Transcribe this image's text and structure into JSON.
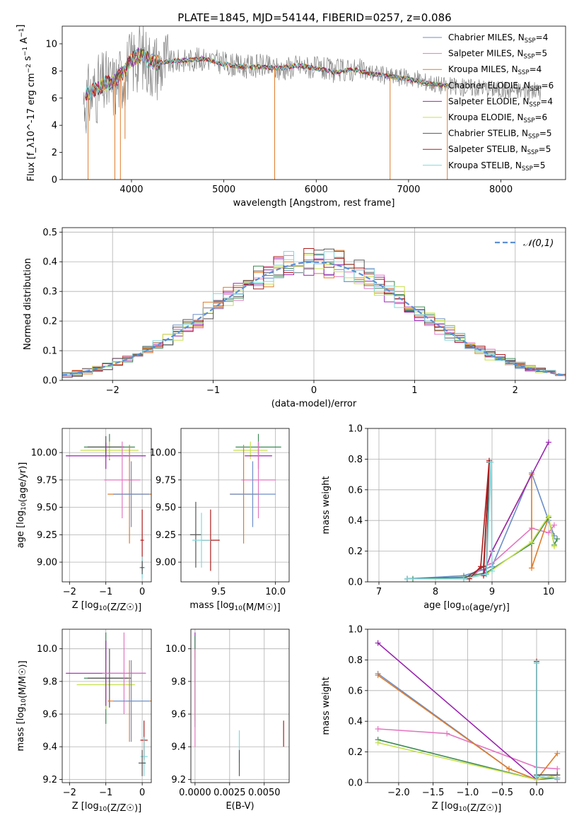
{
  "figure": {
    "title": "PLATE=1845, MJD=54144, FIBERID=0257, z=0.086"
  },
  "models": [
    {
      "name": "Chabrier MILES",
      "nssp": 4,
      "color": "#6c8ec8"
    },
    {
      "name": "Salpeter MILES",
      "nssp": 5,
      "color": "#e377c2"
    },
    {
      "name": "Kroupa MILES",
      "nssp": 4,
      "color": "#e07b2a"
    },
    {
      "name": "Chabrier ELODIE",
      "nssp": 6,
      "color": "#3d8a55"
    },
    {
      "name": "Salpeter ELODIE",
      "nssp": 4,
      "color": "#9a27b0"
    },
    {
      "name": "Kroupa ELODIE",
      "nssp": 6,
      "color": "#c6e04d"
    },
    {
      "name": "Chabrier STELIB",
      "nssp": 5,
      "color": "#555555"
    },
    {
      "name": "Salpeter STELIB",
      "nssp": 5,
      "color": "#b01b1b"
    },
    {
      "name": "Kroupa STELIB",
      "nssp": 5,
      "color": "#7fd8dc"
    }
  ],
  "chart_data": [
    {
      "id": "spectrum",
      "type": "line",
      "xlabel": "wavelength [Angstrom, rest frame]",
      "ylabel": "Flux [f_λ10^-17 erg cm^-2 s^-1 A^-1]",
      "xlim": [
        3250,
        8700
      ],
      "ylim": [
        0,
        11.3
      ],
      "xticks": [
        4000,
        5000,
        6000,
        7000,
        8000
      ],
      "yticks": [
        0,
        2,
        4,
        6,
        8,
        10
      ],
      "grid": false,
      "legend_position": "right",
      "observed": {
        "x": [
          3500,
          3600,
          3700,
          3800,
          3900,
          4000,
          4100,
          4200,
          4300,
          4400,
          4600,
          4800,
          5000,
          5200,
          5400,
          5600,
          5800,
          6000,
          6200,
          6400,
          6600,
          6800,
          7000,
          7200,
          7400,
          7600,
          7800,
          8000,
          8200,
          8400
        ],
        "y": [
          5.8,
          6.5,
          7.0,
          6.9,
          7.6,
          8.6,
          9.2,
          8.6,
          8.4,
          8.6,
          8.8,
          8.9,
          8.6,
          8.3,
          8.4,
          8.1,
          8.4,
          8.2,
          8.0,
          8.1,
          7.9,
          7.6,
          7.5,
          7.2,
          6.9,
          6.8,
          6.8,
          6.6,
          6.6,
          6.5
        ]
      },
      "model": {
        "x": [
          3500,
          3600,
          3700,
          3800,
          3900,
          4000,
          4100,
          4200,
          4300,
          4400,
          4600,
          4800,
          5000,
          5200,
          5400,
          5600,
          5800,
          6000,
          6200,
          6400,
          6600,
          6800,
          7000,
          7200,
          7400
        ],
        "y": [
          6.2,
          6.6,
          7.0,
          7.2,
          7.8,
          8.8,
          9.2,
          8.7,
          8.6,
          8.7,
          8.8,
          8.9,
          8.5,
          8.3,
          8.3,
          8.2,
          8.4,
          8.2,
          7.9,
          8.1,
          7.8,
          7.6,
          7.4,
          7.1,
          6.9
        ]
      },
      "dips": [
        {
          "x": 3530,
          "to": 0
        },
        {
          "x": 3820,
          "to": 0
        },
        {
          "x": 3880,
          "to": 0
        },
        {
          "x": 3930,
          "to": 3.0
        },
        {
          "x": 5550,
          "to": 0
        },
        {
          "x": 6800,
          "to": 0
        },
        {
          "x": 7420,
          "to": 0
        }
      ]
    },
    {
      "id": "residuals",
      "type": "histogram",
      "xlabel": "(data-model)/error",
      "ylabel": "Normed distribution",
      "xlim": [
        -2.5,
        2.5
      ],
      "ylim": [
        0,
        0.515
      ],
      "xticks": [
        -2,
        -1,
        0,
        1,
        2
      ],
      "yticks": [
        0.0,
        0.1,
        0.2,
        0.3,
        0.4,
        0.5
      ],
      "grid": true,
      "reference_label": "𝒩(0,1)",
      "reference_color": "#5b8fd6",
      "legend_position": "top-right",
      "bins": 50,
      "spread_seed": 7
    },
    {
      "id": "age-vs-Z",
      "type": "errorbar",
      "xlabel": "Z [log10(Z/Z☉)]",
      "ylabel": "age [log10(age/yr)]",
      "xlim": [
        -2.2,
        0.25
      ],
      "ylim": [
        8.82,
        10.22
      ],
      "xticks": [
        -2,
        -1,
        0
      ],
      "yticks": [
        9.0,
        9.25,
        9.5,
        9.75,
        10.0
      ],
      "grid": true,
      "points": [
        {
          "model": 3,
          "x": -0.9,
          "xerr": 0.7,
          "y": 10.05,
          "yerr": 0.12
        },
        {
          "model": 5,
          "x": -0.9,
          "xerr": 0.8,
          "y": 10.02,
          "yerr": 0.08
        },
        {
          "model": 6,
          "x": -1.0,
          "xerr": 0.5,
          "y": 10.05,
          "yerr": 0.1
        },
        {
          "model": 4,
          "x": -1.0,
          "xerr": 1.1,
          "y": 9.97,
          "yerr": 0.12
        },
        {
          "model": 1,
          "x": -0.55,
          "xerr": 0.5,
          "y": 9.75,
          "yerr": 0.35
        },
        {
          "model": 2,
          "x": -0.35,
          "xerr": 0.6,
          "y": 9.62,
          "yerr": 0.45
        },
        {
          "model": 0,
          "x": -0.3,
          "xerr": 0.5,
          "y": 9.62,
          "yerr": 0.3
        },
        {
          "model": 7,
          "x": 0.0,
          "xerr": 0.05,
          "y": 9.2,
          "yerr": 0.28
        },
        {
          "model": 8,
          "x": 0.0,
          "xerr": 0.08,
          "y": 8.95,
          "yerr": 0.1
        },
        {
          "model": 6,
          "x": 0.0,
          "xerr": 0.05,
          "y": 8.95,
          "yerr": 0.06
        }
      ]
    },
    {
      "id": "age-vs-mass",
      "type": "errorbar",
      "xlabel": "mass [log10(M/M☉)]",
      "ylabel": "",
      "xlim": [
        9.17,
        10.12
      ],
      "ylim": [
        8.82,
        10.22
      ],
      "xticks": [
        9.5,
        10.0
      ],
      "yticks": [
        9.0,
        9.25,
        9.5,
        9.75,
        10.0
      ],
      "grid": true,
      "points": [
        {
          "model": 3,
          "x": 9.85,
          "xerr": 0.2,
          "y": 10.05,
          "yerr": 0.12
        },
        {
          "model": 5,
          "x": 9.78,
          "xerr": 0.15,
          "y": 10.02,
          "yerr": 0.08
        },
        {
          "model": 4,
          "x": 9.85,
          "xerr": 0.12,
          "y": 9.97,
          "yerr": 0.12
        },
        {
          "model": 1,
          "x": 9.85,
          "xerr": 0.15,
          "y": 9.75,
          "yerr": 0.35
        },
        {
          "model": 2,
          "x": 9.72,
          "xerr": 0.12,
          "y": 9.62,
          "yerr": 0.45
        },
        {
          "model": 0,
          "x": 9.8,
          "xerr": 0.2,
          "y": 9.62,
          "yerr": 0.3
        },
        {
          "model": 7,
          "x": 9.43,
          "xerr": 0.08,
          "y": 9.2,
          "yerr": 0.28
        },
        {
          "model": 6,
          "x": 9.3,
          "xerr": 0.05,
          "y": 9.25,
          "yerr": 0.3
        },
        {
          "model": 8,
          "x": 9.35,
          "xerr": 0.08,
          "y": 9.2,
          "yerr": 0.25
        }
      ]
    },
    {
      "id": "weight-vs-age",
      "type": "line",
      "xlabel": "age [log10(age/yr)]",
      "ylabel": "mass weight",
      "xlim": [
        6.8,
        10.3
      ],
      "ylim": [
        0,
        1.0
      ],
      "xticks": [
        7,
        8,
        9,
        10
      ],
      "yticks": [
        0.0,
        0.2,
        0.4,
        0.6,
        0.8,
        1.0
      ],
      "grid": true,
      "series": [
        {
          "model": 0,
          "x": [
            7.5,
            8.5,
            8.85,
            9.0,
            9.7,
            10.0,
            10.1
          ],
          "y": [
            0.02,
            0.04,
            0.08,
            0.1,
            0.71,
            0.4,
            0.3
          ]
        },
        {
          "model": 1,
          "x": [
            8.7,
            8.85,
            9.0,
            9.7,
            10.0,
            10.1
          ],
          "y": [
            0.05,
            0.1,
            0.12,
            0.35,
            0.32,
            0.37
          ]
        },
        {
          "model": 2,
          "x": [
            8.85,
            9.0,
            9.7,
            9.7,
            10.0
          ],
          "y": [
            0.05,
            0.2,
            0.7,
            0.09,
            0.42
          ]
        },
        {
          "model": 3,
          "x": [
            7.6,
            8.5,
            8.9,
            9.7,
            10.0,
            10.1,
            10.15
          ],
          "y": [
            0.02,
            0.03,
            0.06,
            0.25,
            0.42,
            0.24,
            0.28
          ]
        },
        {
          "model": 4,
          "x": [
            8.85,
            9.0,
            10.0
          ],
          "y": [
            0.05,
            0.2,
            0.91
          ]
        },
        {
          "model": 5,
          "x": [
            8.5,
            8.9,
            9.7,
            10.0,
            10.1
          ],
          "y": [
            0.02,
            0.05,
            0.26,
            0.43,
            0.23
          ]
        },
        {
          "model": 6,
          "x": [
            7.5,
            8.5,
            8.85,
            8.95,
            8.9
          ],
          "y": [
            0.02,
            0.02,
            0.1,
            0.78,
            0.05
          ]
        },
        {
          "model": 7,
          "x": [
            7.5,
            8.6,
            8.8,
            8.95,
            8.85
          ],
          "y": [
            0.02,
            0.02,
            0.1,
            0.79,
            0.04
          ]
        },
        {
          "model": 8,
          "x": [
            7.5,
            8.5,
            8.9,
            8.98,
            9.0
          ],
          "y": [
            0.02,
            0.02,
            0.05,
            0.78,
            0.07
          ]
        }
      ]
    },
    {
      "id": "mass-vs-Z",
      "type": "errorbar",
      "xlabel": "Z [log10(Z/Z☉)]",
      "ylabel": "mass [log10(M/M☉)]",
      "xlim": [
        -2.2,
        0.25
      ],
      "ylim": [
        9.18,
        10.12
      ],
      "xticks": [
        -2,
        -1,
        0
      ],
      "yticks": [
        9.2,
        9.4,
        9.6,
        9.8,
        10.0
      ],
      "grid": true,
      "points": [
        {
          "model": 3,
          "x": -1.0,
          "xerr": 0.6,
          "y": 9.82,
          "yerr": 0.28
        },
        {
          "model": 5,
          "x": -1.0,
          "xerr": 0.8,
          "y": 9.78,
          "yerr": 0.15
        },
        {
          "model": 6,
          "x": -0.9,
          "xerr": 0.6,
          "y": 9.82,
          "yerr": 0.18
        },
        {
          "model": 4,
          "x": -1.0,
          "xerr": 1.1,
          "y": 9.85,
          "yerr": 0.2
        },
        {
          "model": 1,
          "x": -0.5,
          "xerr": 0.6,
          "y": 9.85,
          "yerr": 0.25
        },
        {
          "model": 2,
          "x": -0.35,
          "xerr": 0.6,
          "y": 9.68,
          "yerr": 0.25
        },
        {
          "model": 0,
          "x": -0.3,
          "xerr": 0.5,
          "y": 9.68,
          "yerr": 0.25
        },
        {
          "model": 7,
          "x": 0.05,
          "xerr": 0.1,
          "y": 9.44,
          "yerr": 0.12
        },
        {
          "model": 8,
          "x": 0.05,
          "xerr": 0.1,
          "y": 9.34,
          "yerr": 0.12
        },
        {
          "model": 6,
          "x": 0.0,
          "xerr": 0.1,
          "y": 9.3,
          "yerr": 0.08
        }
      ]
    },
    {
      "id": "mass-vs-ebv",
      "type": "errorbar",
      "xlabel": "E(B-V)",
      "ylabel": "",
      "xlim": [
        -0.0003,
        0.0068
      ],
      "ylim": [
        9.18,
        10.12
      ],
      "xticks": [
        0.0,
        0.0025,
        0.005
      ],
      "xtick_labels": [
        "0.0000",
        "0.0025",
        "0.0050"
      ],
      "yticks": [
        9.2,
        9.4,
        9.6,
        9.8,
        10.0
      ],
      "grid": true,
      "points": [
        {
          "model": 4,
          "x": 0.0,
          "xerr": 0,
          "y": 10.02,
          "yerr": 0.08
        },
        {
          "model": 5,
          "x": 0.0,
          "xerr": 0,
          "y": 9.78,
          "yerr": 0.22
        },
        {
          "model": 3,
          "x": 0.0,
          "xerr": 0,
          "y": 9.8,
          "yerr": 0.28
        },
        {
          "model": 1,
          "x": 0.0,
          "xerr": 0,
          "y": 9.7,
          "yerr": 0.3
        },
        {
          "model": 8,
          "x": 0.0032,
          "xerr": 0,
          "y": 9.4,
          "yerr": 0.1
        },
        {
          "model": 6,
          "x": 0.0032,
          "xerr": 0,
          "y": 9.3,
          "yerr": 0.08
        },
        {
          "model": 7,
          "x": 0.0064,
          "xerr": 0,
          "y": 9.48,
          "yerr": 0.08
        }
      ]
    },
    {
      "id": "weight-vs-Z",
      "type": "line",
      "xlabel": "Z [log10(Z/Z☉)]",
      "ylabel": "mass weight",
      "xlim": [
        -2.45,
        0.42
      ],
      "ylim": [
        0,
        1.0
      ],
      "xticks": [
        -2.0,
        -1.5,
        -1.0,
        -0.5,
        0.0
      ],
      "yticks": [
        0.0,
        0.2,
        0.4,
        0.6,
        0.8,
        1.0
      ],
      "grid": true,
      "series": [
        {
          "model": 0,
          "x": [
            -2.3,
            -0.4,
            0.0,
            0.3
          ],
          "y": [
            0.71,
            0.09,
            0.02,
            0.05
          ]
        },
        {
          "model": 1,
          "x": [
            -2.3,
            -1.3,
            0.0,
            0.3,
            0.3
          ],
          "y": [
            0.35,
            0.32,
            0.1,
            0.09,
            0.02
          ]
        },
        {
          "model": 2,
          "x": [
            -2.3,
            -0.4,
            0.0,
            0.3
          ],
          "y": [
            0.7,
            0.09,
            0.02,
            0.19
          ]
        },
        {
          "model": 3,
          "x": [
            -2.3,
            0.0,
            0.3
          ],
          "y": [
            0.28,
            0.02,
            0.03
          ]
        },
        {
          "model": 4,
          "x": [
            -2.3,
            0.0,
            0.3
          ],
          "y": [
            0.91,
            0.02,
            0.05
          ]
        },
        {
          "model": 5,
          "x": [
            -2.3,
            0.0,
            0.3
          ],
          "y": [
            0.26,
            0.02,
            0.05
          ]
        },
        {
          "model": 6,
          "x": [
            0.0,
            0.0,
            0.3
          ],
          "y": [
            0.78,
            0.05,
            0.05
          ]
        },
        {
          "model": 7,
          "x": [
            0.0,
            0.0,
            0.3
          ],
          "y": [
            0.79,
            0.04,
            0.03
          ]
        },
        {
          "model": 8,
          "x": [
            0.0,
            0.0,
            0.3
          ],
          "y": [
            0.78,
            0.04,
            0.03
          ]
        }
      ]
    }
  ]
}
